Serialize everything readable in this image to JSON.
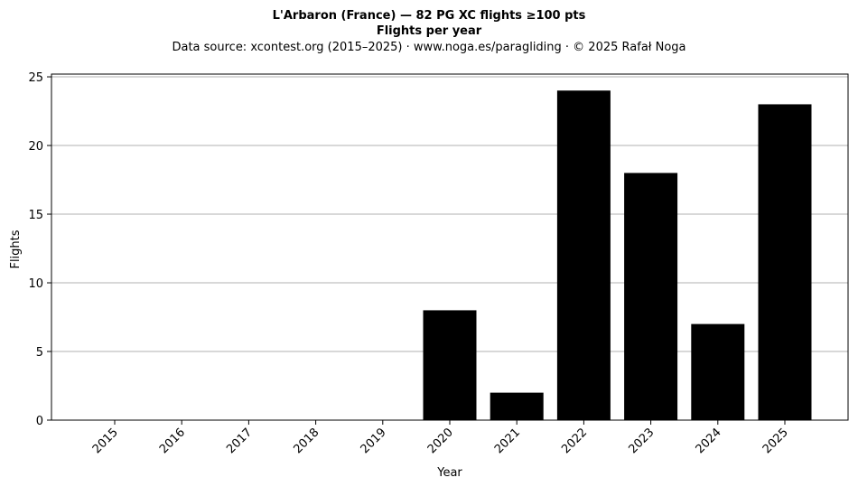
{
  "chart_data": {
    "type": "bar",
    "title": "L'Arbaron (France)  —  82 PG XC flights ≥100 pts",
    "subtitle": "Flights per year",
    "source": "Data source: xcontest.org (2015–2025)  ·  www.noga.es/paragliding  ·  © 2025 Rafał Noga",
    "xlabel": "Year",
    "ylabel": "Flights",
    "categories": [
      "2015",
      "2016",
      "2017",
      "2018",
      "2019",
      "2020",
      "2021",
      "2022",
      "2023",
      "2024",
      "2025"
    ],
    "values": [
      0,
      0,
      0,
      0,
      0,
      8,
      2,
      24,
      18,
      7,
      23
    ],
    "ylim": [
      0,
      25.2
    ],
    "yticks": [
      0,
      5,
      10,
      15,
      20,
      25
    ],
    "grid": "y",
    "bar_color": "#000000",
    "grid_color": "#b0b0b0"
  }
}
